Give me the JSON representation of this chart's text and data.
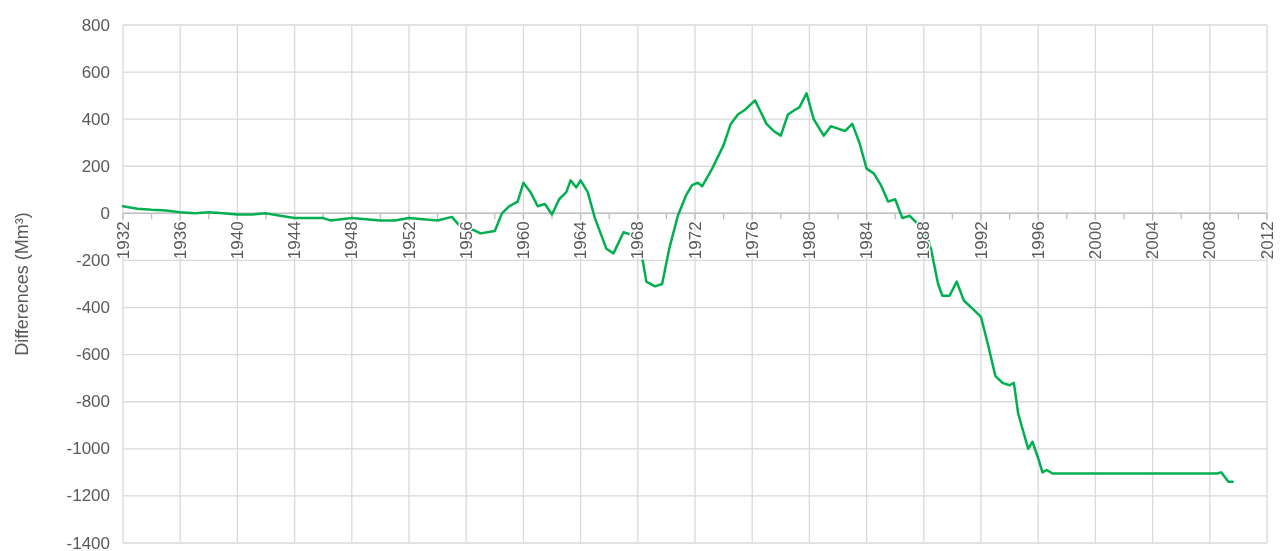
{
  "chart_data": {
    "type": "line",
    "ylabel": "Differences (Mm³)",
    "xlim": [
      1932,
      2012
    ],
    "ylim": [
      -1400,
      800
    ],
    "xticks": [
      1932,
      {
        "value": 1934,
        "label": null
      },
      1936,
      {
        "value": 1938,
        "label": null
      },
      1940,
      {
        "value": 1942,
        "label": null
      },
      1944,
      {
        "value": 1946,
        "label": null
      },
      1948,
      {
        "value": 1950,
        "label": null
      },
      1952,
      {
        "value": 1954,
        "label": null
      },
      1956,
      {
        "value": 1958,
        "label": null
      },
      1960,
      {
        "value": 1962,
        "label": null
      },
      1964,
      {
        "value": 1966,
        "label": null
      },
      1968,
      {
        "value": 1970,
        "label": null
      },
      1972,
      {
        "value": 1974,
        "label": null
      },
      1976,
      {
        "value": 1978,
        "label": null
      },
      1980,
      {
        "value": 1982,
        "label": null
      },
      1984,
      {
        "value": 1986,
        "label": null
      },
      1988,
      {
        "value": 1990,
        "label": null
      },
      1992,
      {
        "value": 1994,
        "label": null
      },
      1996,
      {
        "value": 1998,
        "label": null
      },
      2000,
      {
        "value": 2002,
        "label": null
      },
      2004,
      {
        "value": 2006,
        "label": null
      },
      2008,
      {
        "value": 2010,
        "label": null
      },
      2012
    ],
    "yticks": [
      -1400,
      -1200,
      -1000,
      -800,
      -600,
      -400,
      -200,
      0,
      200,
      400,
      600,
      800
    ],
    "grid": true,
    "marker": "none",
    "line_style": "solid",
    "x": [
      1932,
      1933,
      1934,
      1935,
      1936,
      1937,
      1938,
      1939,
      1940,
      1941,
      1942,
      1943,
      1944,
      1945,
      1946,
      1946.5,
      1948,
      1949,
      1950,
      1951,
      1952,
      1953,
      1954,
      1955,
      1955.5,
      1956,
      1956.5,
      1957,
      1958,
      1958.5,
      1959,
      1959.6,
      1960,
      1960.5,
      1961,
      1961.5,
      1962,
      1962.5,
      1963,
      1963.3,
      1963.7,
      1964,
      1964.5,
      1965,
      1965.8,
      1966.3,
      1967,
      1967.5,
      1968.2,
      1968.6,
      1969.2,
      1969.7,
      1970.2,
      1970.8,
      1971.4,
      1971.8,
      1972.2,
      1972.5,
      1973.2,
      1974,
      1974.5,
      1975,
      1975.5,
      1976.2,
      1977,
      1977.5,
      1978,
      1978.5,
      1979,
      1979.3,
      1979.8,
      1980.3,
      1981,
      1981.5,
      1982,
      1982.5,
      1983,
      1983.5,
      1984,
      1984.5,
      1985,
      1985.5,
      1986,
      1986.5,
      1987,
      1987.5,
      1988,
      1988.5,
      1989,
      1989.3,
      1989.8,
      1990.3,
      1990.8,
      1991.5,
      1992,
      1992.5,
      1993,
      1993.5,
      1994,
      1994.3,
      1994.6,
      1995.3,
      1995.6,
      1996,
      1996.3,
      1996.6,
      1997,
      2008.5,
      2008.8,
      2009.3,
      2009.6
    ],
    "series": [
      {
        "color": "#00b050",
        "values": [
          30,
          20,
          15,
          12,
          5,
          0,
          5,
          0,
          -5,
          -5,
          0,
          -10,
          -20,
          -20,
          -20,
          -30,
          -20,
          -25,
          -30,
          -30,
          -20,
          -25,
          -30,
          -15,
          -50,
          -65,
          -70,
          -85,
          -75,
          0,
          30,
          50,
          130,
          90,
          30,
          40,
          -5,
          60,
          90,
          140,
          110,
          140,
          90,
          -20,
          -150,
          -170,
          -80,
          -90,
          -150,
          -290,
          -310,
          -300,
          -150,
          -10,
          80,
          120,
          130,
          115,
          190,
          290,
          380,
          420,
          440,
          480,
          380,
          350,
          330,
          420,
          440,
          450,
          510,
          400,
          330,
          370,
          360,
          350,
          380,
          300,
          190,
          170,
          120,
          50,
          60,
          -20,
          -10,
          -40,
          -60,
          -150,
          -300,
          -350,
          -350,
          -290,
          -370,
          -410,
          -440,
          -560,
          -690,
          -720,
          -730,
          -720,
          -850,
          -1000,
          -970,
          -1040,
          -1100,
          -1090,
          -1105,
          -1105,
          -1100,
          -1140,
          -1140
        ]
      }
    ]
  }
}
